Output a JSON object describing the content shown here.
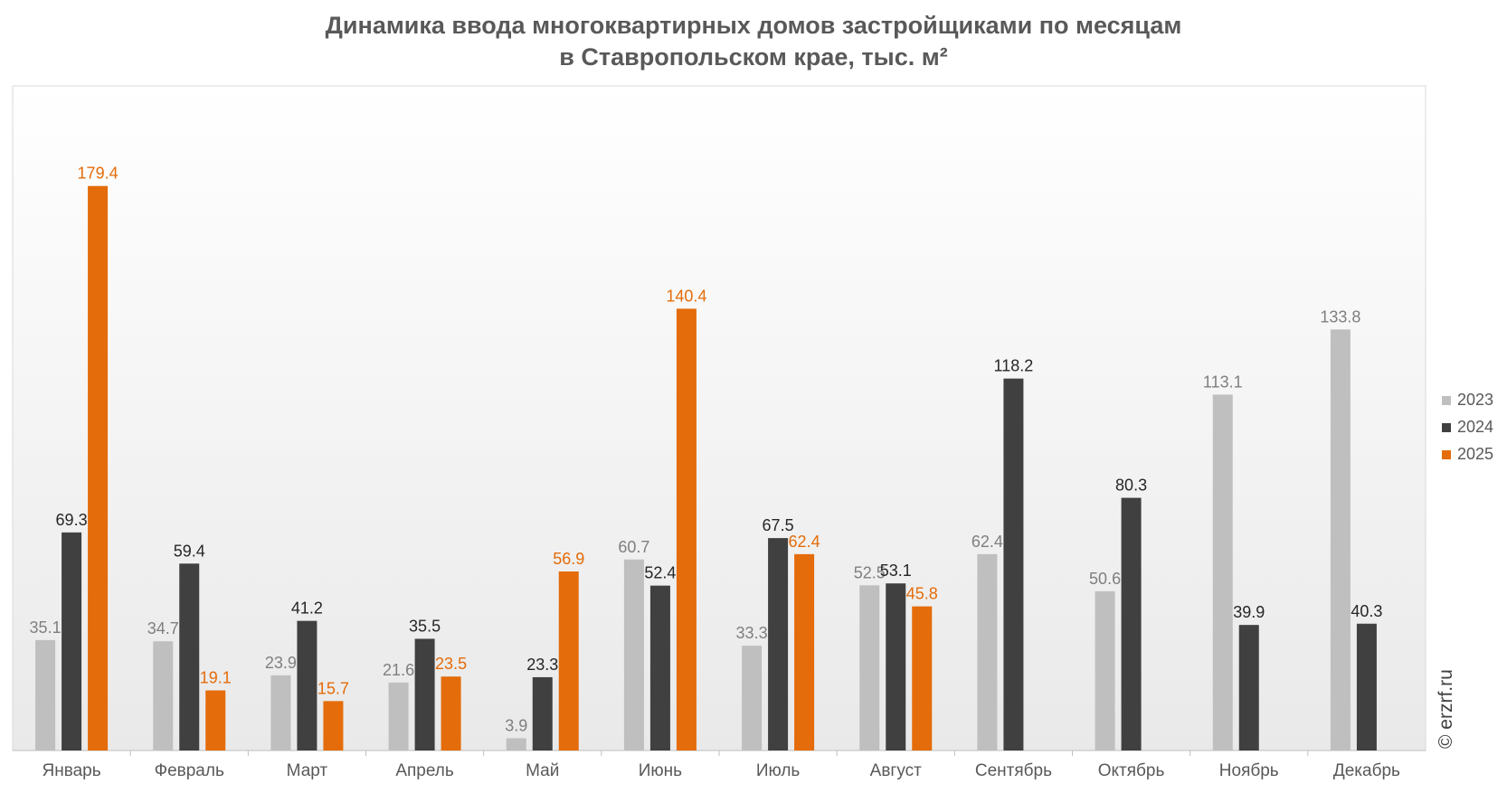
{
  "chart_data": {
    "type": "bar",
    "title": "Динамика ввода многоквартирных домов застройщиками по месяцам",
    "subtitle": "в Ставропольском крае, тыс. м²",
    "xlabel": "",
    "ylabel": "",
    "categories": [
      "Январь",
      "Февраль",
      "Март",
      "Апрель",
      "Май",
      "Июнь",
      "Июль",
      "Август",
      "Сентябрь",
      "Октябрь",
      "Ноябрь",
      "Декабрь"
    ],
    "ylim": [
      0,
      210
    ],
    "grid": false,
    "legend_position": "right",
    "series": [
      {
        "name": "2023",
        "color": "#bfbfbf",
        "label_color": "#7f7f7f",
        "values": [
          35.1,
          34.7,
          23.9,
          21.6,
          3.9,
          60.7,
          33.3,
          52.5,
          62.4,
          50.6,
          113.1,
          133.8
        ]
      },
      {
        "name": "2024",
        "color": "#404040",
        "label_color": "#262626",
        "values": [
          69.3,
          59.4,
          41.2,
          35.5,
          23.3,
          52.4,
          67.5,
          53.1,
          118.2,
          80.3,
          39.9,
          40.3
        ]
      },
      {
        "name": "2025",
        "color": "#e46c0a",
        "label_color": "#e46c0a",
        "values": [
          179.4,
          19.1,
          15.7,
          23.5,
          56.9,
          140.4,
          62.4,
          45.8,
          null,
          null,
          null,
          null
        ]
      }
    ]
  },
  "copyright": "© erzrf.ru"
}
